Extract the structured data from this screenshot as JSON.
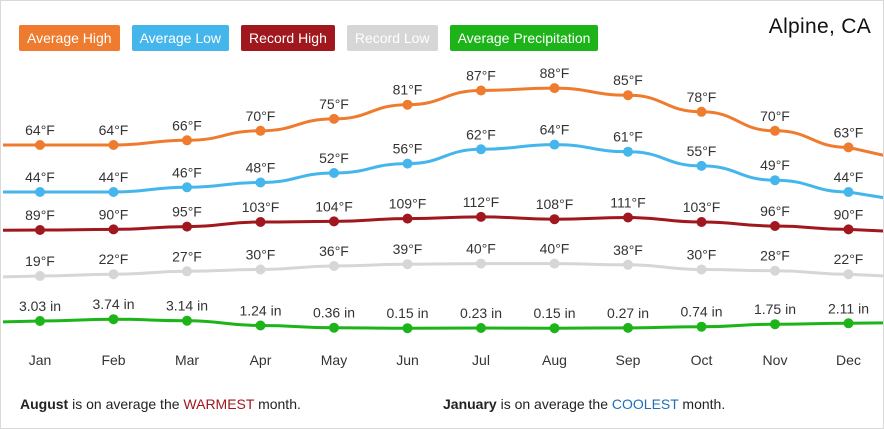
{
  "location": "Alpine, CA",
  "legend": [
    {
      "key": "avg_high",
      "label": "Average High",
      "color": "#ef7b2e"
    },
    {
      "key": "avg_low",
      "label": "Average Low",
      "color": "#45b6ec"
    },
    {
      "key": "rec_high",
      "label": "Record High",
      "color": "#a0171d"
    },
    {
      "key": "rec_low",
      "label": "Record Low",
      "color": "#d6d6d6"
    },
    {
      "key": "precip",
      "label": "Average Precipitation",
      "color": "#1db41a"
    }
  ],
  "chart_data": {
    "type": "line",
    "categories": [
      "Jan",
      "Feb",
      "Mar",
      "Apr",
      "May",
      "Jun",
      "Jul",
      "Aug",
      "Sep",
      "Oct",
      "Nov",
      "Dec"
    ],
    "series": [
      {
        "name": "Average High",
        "unit": "°F",
        "color": "#ef7b2e",
        "values": [
          64,
          64,
          66,
          70,
          75,
          81,
          87,
          88,
          85,
          78,
          70,
          63
        ],
        "labels": [
          "64°F",
          "64°F",
          "66°F",
          "70°F",
          "75°F",
          "81°F",
          "87°F",
          "88°F",
          "85°F",
          "78°F",
          "70°F",
          "63°F"
        ]
      },
      {
        "name": "Average Low",
        "unit": "°F",
        "color": "#45b6ec",
        "values": [
          44,
          44,
          46,
          48,
          52,
          56,
          62,
          64,
          61,
          55,
          49,
          44
        ],
        "labels": [
          "44°F",
          "44°F",
          "46°F",
          "48°F",
          "52°F",
          "56°F",
          "62°F",
          "64°F",
          "61°F",
          "55°F",
          "49°F",
          "44°F"
        ]
      },
      {
        "name": "Record High",
        "unit": "°F",
        "color": "#a0171d",
        "values": [
          89,
          90,
          95,
          103,
          104,
          109,
          112,
          108,
          111,
          103,
          96,
          90
        ],
        "labels": [
          "89°F",
          "90°F",
          "95°F",
          "103°F",
          "104°F",
          "109°F",
          "112°F",
          "108°F",
          "111°F",
          "103°F",
          "96°F",
          "90°F"
        ]
      },
      {
        "name": "Record Low",
        "unit": "°F",
        "color": "#d6d6d6",
        "values": [
          19,
          22,
          27,
          30,
          36,
          39,
          40,
          40,
          38,
          30,
          28,
          22
        ],
        "labels": [
          "19°F",
          "22°F",
          "27°F",
          "30°F",
          "36°F",
          "39°F",
          "40°F",
          "40°F",
          "38°F",
          "30°F",
          "28°F",
          "22°F"
        ]
      },
      {
        "name": "Average Precipitation",
        "unit": "in",
        "color": "#1db41a",
        "values": [
          3.03,
          3.74,
          3.14,
          1.24,
          0.36,
          0.15,
          0.23,
          0.15,
          0.27,
          0.74,
          1.75,
          2.11
        ],
        "labels": [
          "3.03 in",
          "3.74 in",
          "3.14 in",
          "1.24 in",
          "0.36 in",
          "0.15 in",
          "0.23 in",
          "0.15 in",
          "0.27 in",
          "0.74 in",
          "1.75 in",
          "2.11 in"
        ]
      }
    ]
  },
  "footer": {
    "warm_month": "August",
    "warm_text_a": " is on average the ",
    "warm_word": "WARMEST",
    "warm_text_b": " month.",
    "cool_month": "January",
    "cool_text_a": " is on average the ",
    "cool_word": "COOLEST",
    "cool_text_b": " month."
  }
}
